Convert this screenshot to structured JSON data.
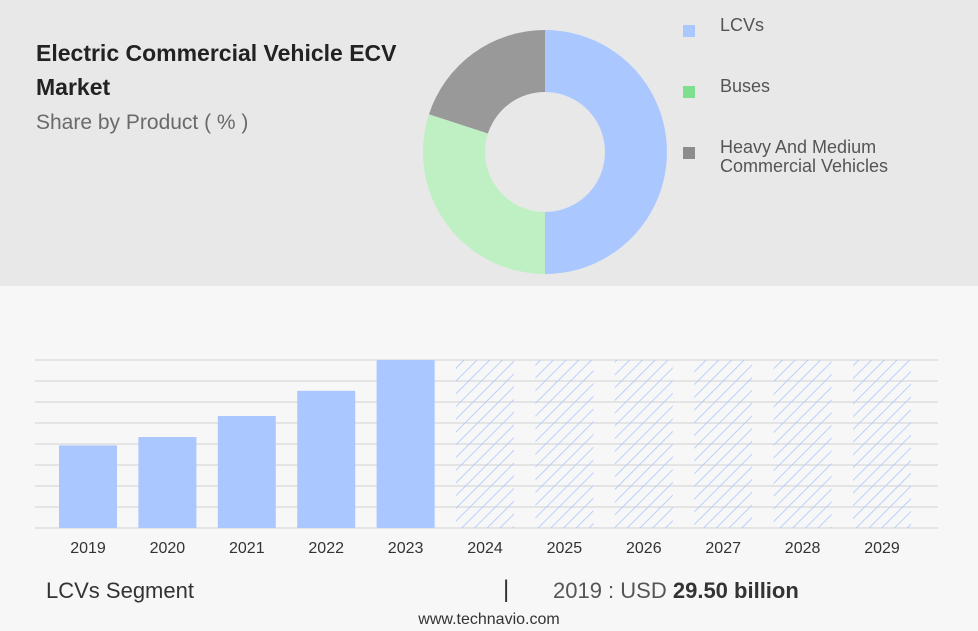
{
  "header": {
    "title": "Electric Commercial Vehicle ECV Market",
    "subtitle": "Share by Product ( % )"
  },
  "legend": [
    {
      "label": "LCVs",
      "color": "#aac8ff"
    },
    {
      "label": "Buses",
      "color": "#7ee08e"
    },
    {
      "label": "Heavy And Medium Commercial Vehicles",
      "color": "#8c8c8c"
    }
  ],
  "chart_data": [
    {
      "type": "pie",
      "variant": "donut",
      "labels": [
        "LCVs",
        "Buses",
        "Heavy And Medium Commercial Vehicles"
      ],
      "values": [
        50,
        30,
        20
      ],
      "colors": [
        "#aac8ff",
        "#bff0c3",
        "#999999"
      ]
    },
    {
      "type": "bar",
      "categories": [
        "2019",
        "2020",
        "2021",
        "2022",
        "2023",
        "2024",
        "2025",
        "2026",
        "2027",
        "2028",
        "2029"
      ],
      "values": [
        29.5,
        32.5,
        40.0,
        49.0,
        60.0,
        60.0,
        60.0,
        60.0,
        60.0,
        60.0,
        60.0
      ],
      "forecast_from": "2024",
      "ylim": [
        0,
        60
      ],
      "grid": true,
      "bar_color": "#aac8ff"
    }
  ],
  "footer": {
    "segment_label": "LCVs Segment",
    "separator": "|",
    "value_prefix": "2019 : USD",
    "value_bold": "29.50 billion",
    "source_url": "www.technavio.com"
  }
}
